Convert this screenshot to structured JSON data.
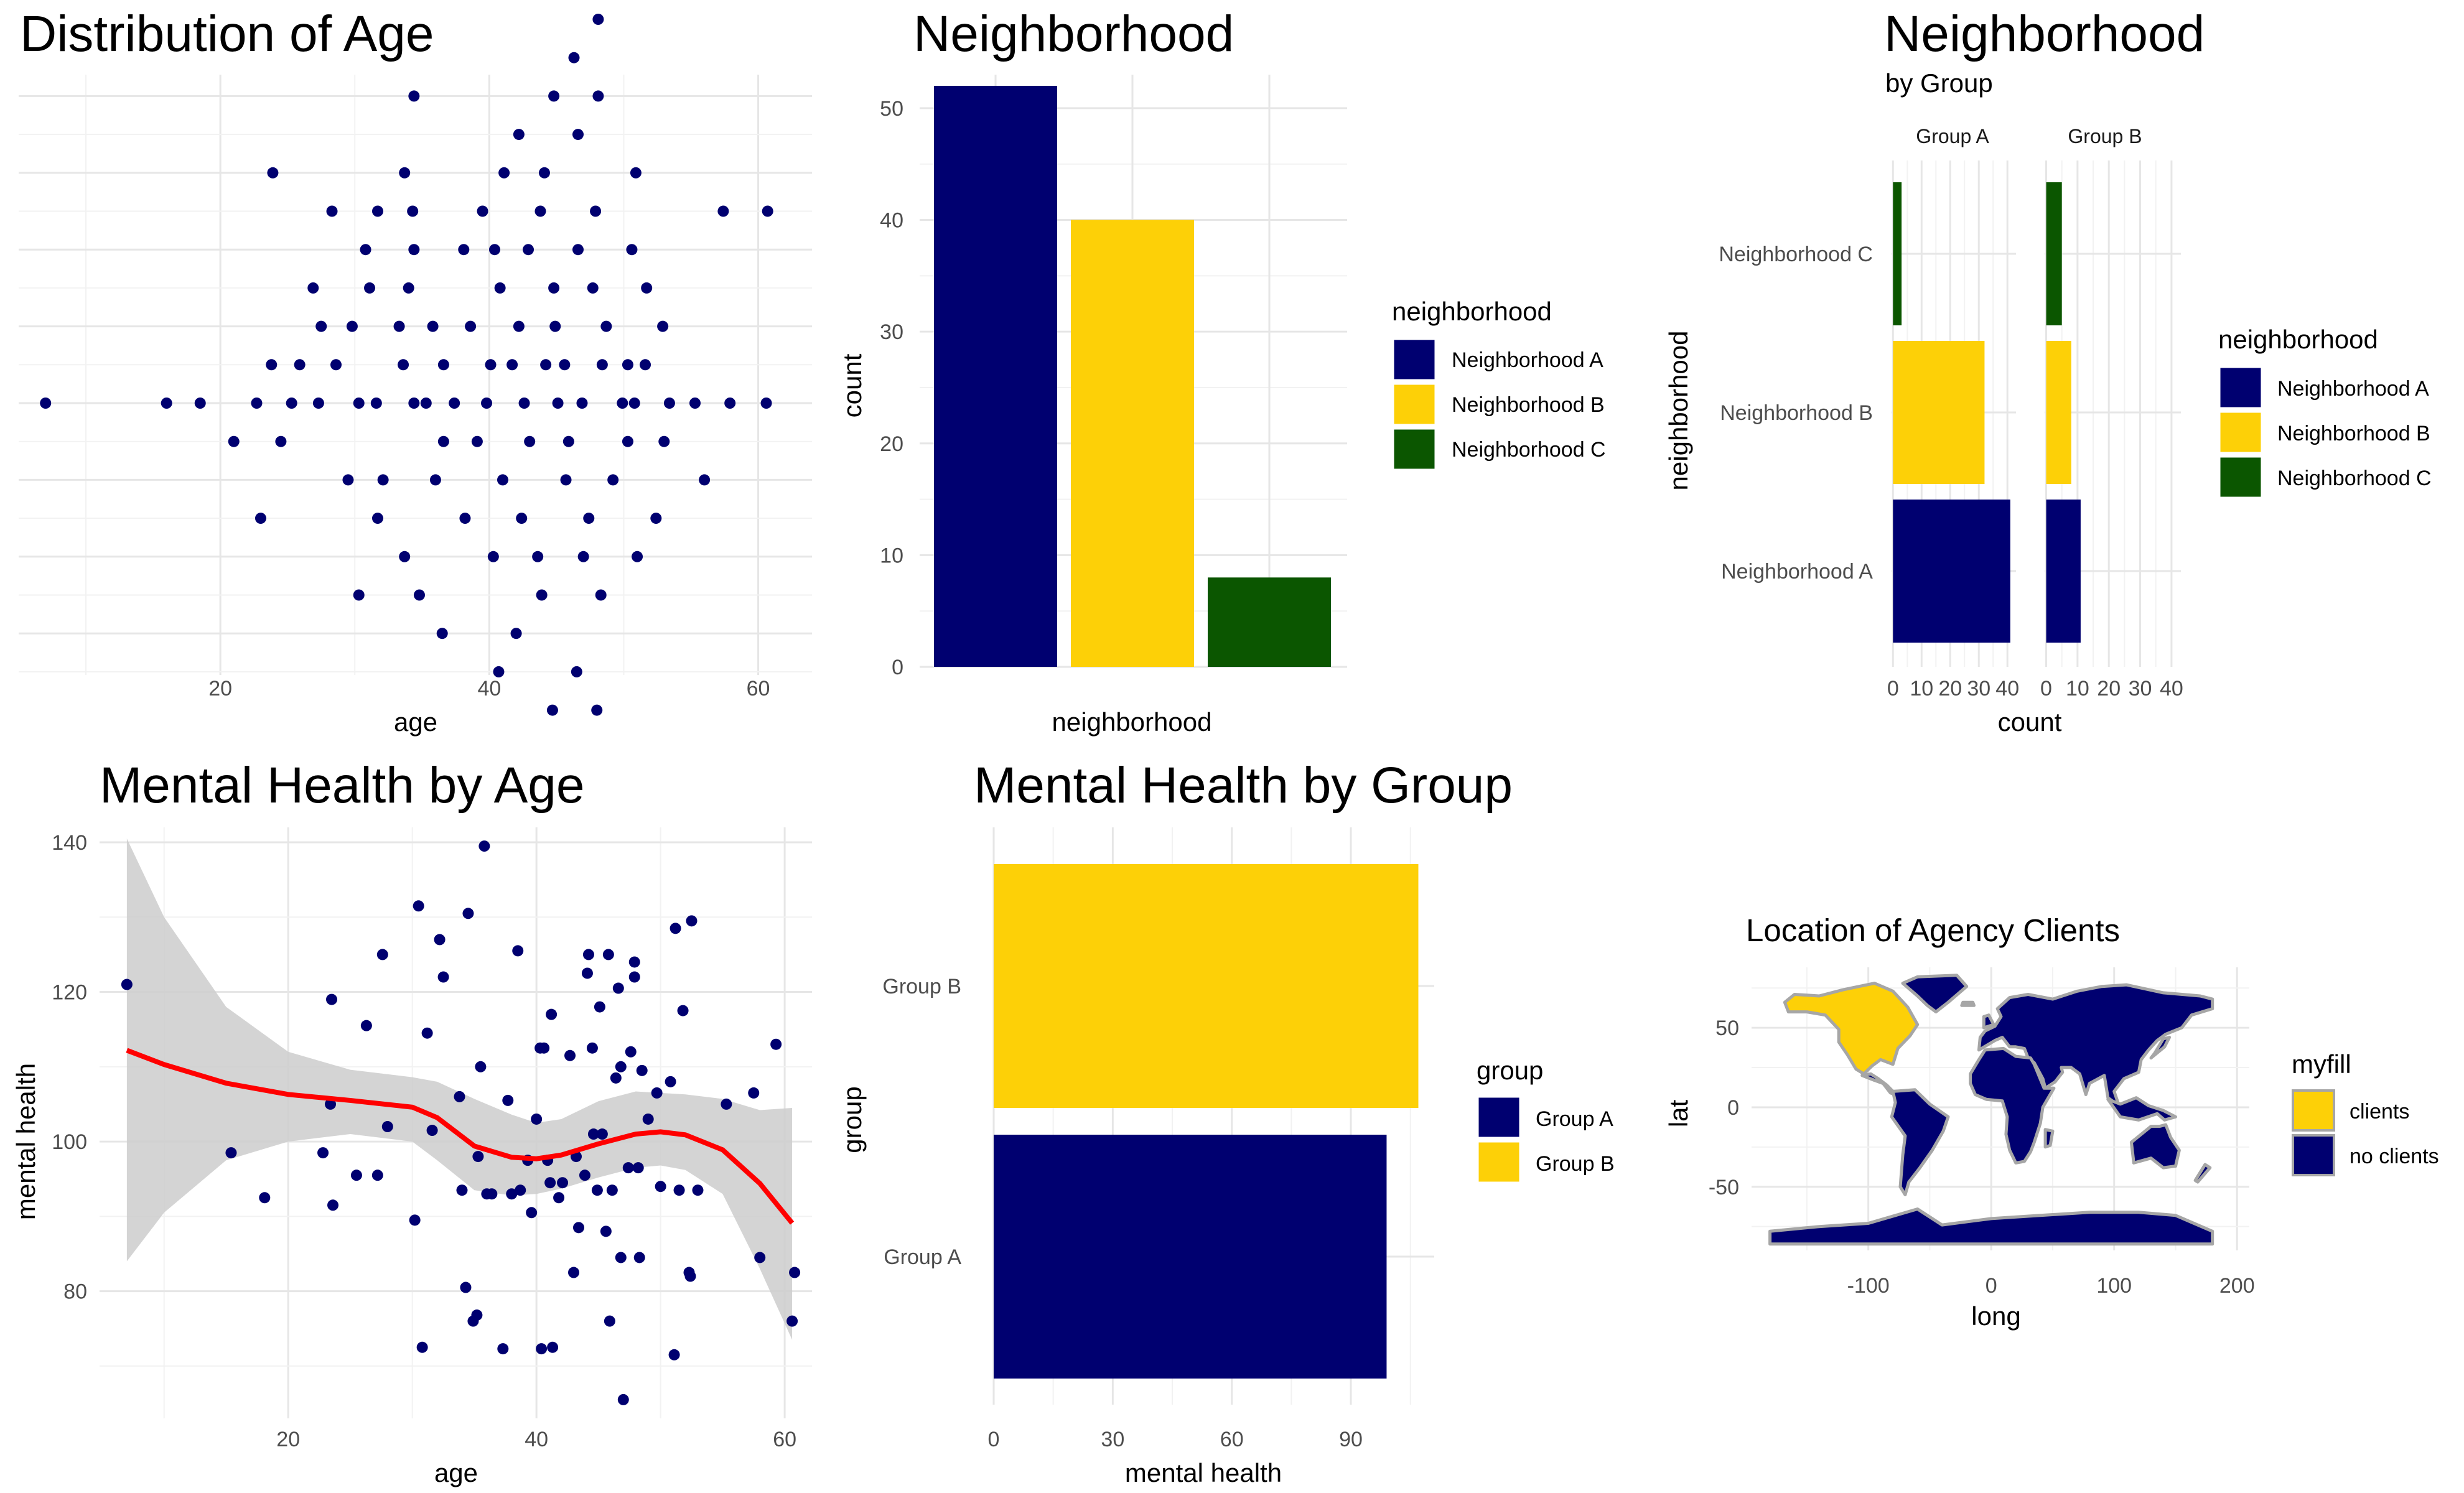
{
  "colors": {
    "navy": "#000070",
    "gold": "#FDD007",
    "green": "#0B5600",
    "red": "#FF0000",
    "band": "#CCCCCC",
    "land": "#A6A6A6"
  },
  "chart_data": [
    {
      "type": "scatter",
      "title": "Distribution of Age",
      "xlabel": "age",
      "ylabel": "",
      "xlim": [
        5,
        64
      ],
      "xticks": [
        "20",
        "40",
        "60"
      ],
      "grid": true,
      "note": "dotplot of ages; y axis has no labels",
      "points": [
        [
          7,
          0
        ],
        [
          16,
          0
        ],
        [
          18.5,
          0
        ],
        [
          22.7,
          0
        ],
        [
          25.3,
          0
        ],
        [
          27.3,
          0
        ],
        [
          30.3,
          0
        ],
        [
          31.6,
          0
        ],
        [
          34.4,
          0
        ],
        [
          35.3,
          0
        ],
        [
          37.4,
          0
        ],
        [
          39.8,
          0
        ],
        [
          42.6,
          0
        ],
        [
          45.1,
          0
        ],
        [
          46.9,
          0
        ],
        [
          49.9,
          0
        ],
        [
          50.8,
          0
        ],
        [
          53.4,
          0
        ],
        [
          55.3,
          0
        ],
        [
          57.9,
          0
        ],
        [
          60.6,
          0
        ],
        [
          23.8,
          1
        ],
        [
          25.9,
          1
        ],
        [
          28.6,
          1
        ],
        [
          33.6,
          1
        ],
        [
          36.6,
          1
        ],
        [
          40.1,
          1
        ],
        [
          41.7,
          1
        ],
        [
          44.2,
          1
        ],
        [
          45.6,
          1
        ],
        [
          48.4,
          1
        ],
        [
          50.3,
          1
        ],
        [
          51.6,
          1
        ],
        [
          27.5,
          2
        ],
        [
          29.8,
          2
        ],
        [
          33.3,
          2
        ],
        [
          35.8,
          2
        ],
        [
          38.6,
          2
        ],
        [
          42.2,
          2
        ],
        [
          44.9,
          2
        ],
        [
          48.7,
          2
        ],
        [
          52.9,
          2
        ],
        [
          26.9,
          3
        ],
        [
          31.1,
          3
        ],
        [
          34.0,
          3
        ],
        [
          40.8,
          3
        ],
        [
          44.8,
          3
        ],
        [
          47.7,
          3
        ],
        [
          51.7,
          3
        ],
        [
          30.8,
          4
        ],
        [
          34.4,
          4
        ],
        [
          38.1,
          4
        ],
        [
          40.4,
          4
        ],
        [
          42.9,
          4
        ],
        [
          46.6,
          4
        ],
        [
          50.6,
          4
        ],
        [
          28.3,
          5
        ],
        [
          31.7,
          5
        ],
        [
          34.3,
          5
        ],
        [
          39.5,
          5
        ],
        [
          43.8,
          5
        ],
        [
          47.9,
          5
        ],
        [
          57.4,
          5
        ],
        [
          60.7,
          5
        ],
        [
          23.9,
          6
        ],
        [
          33.7,
          6
        ],
        [
          41.1,
          6
        ],
        [
          44.1,
          6
        ],
        [
          50.9,
          6
        ],
        [
          42.2,
          7
        ],
        [
          46.6,
          7
        ],
        [
          34.4,
          8
        ],
        [
          44.8,
          8
        ],
        [
          48.1,
          8
        ],
        [
          46.3,
          9
        ],
        [
          48.1,
          10
        ],
        [
          21.0,
          -1
        ],
        [
          24.5,
          -1
        ],
        [
          36.6,
          -1
        ],
        [
          39.1,
          -1
        ],
        [
          43.0,
          -1
        ],
        [
          45.9,
          -1
        ],
        [
          50.3,
          -1
        ],
        [
          53.0,
          -1
        ],
        [
          29.5,
          -2
        ],
        [
          32.1,
          -2
        ],
        [
          36.0,
          -2
        ],
        [
          41.0,
          -2
        ],
        [
          45.7,
          -2
        ],
        [
          49.2,
          -2
        ],
        [
          56.0,
          -2
        ],
        [
          23.0,
          -3
        ],
        [
          31.7,
          -3
        ],
        [
          38.2,
          -3
        ],
        [
          42.4,
          -3
        ],
        [
          47.4,
          -3
        ],
        [
          52.4,
          -3
        ],
        [
          33.7,
          -4
        ],
        [
          40.3,
          -4
        ],
        [
          43.6,
          -4
        ],
        [
          47.0,
          -4
        ],
        [
          51.0,
          -4
        ],
        [
          30.3,
          -5
        ],
        [
          34.8,
          -5
        ],
        [
          43.9,
          -5
        ],
        [
          48.3,
          -5
        ],
        [
          36.5,
          -6
        ],
        [
          42.0,
          -6
        ],
        [
          40.7,
          -7
        ],
        [
          46.5,
          -7
        ],
        [
          44.7,
          -8
        ],
        [
          48.0,
          -8
        ]
      ]
    },
    {
      "type": "bar",
      "title": "Neighborhood",
      "xlabel": "neighborhood",
      "ylabel": "count",
      "ylim": [
        0,
        53
      ],
      "yticks": [
        0,
        10,
        20,
        30,
        40,
        50
      ],
      "categories": [
        "Neighborhood A",
        "Neighborhood B",
        "Neighborhood C"
      ],
      "values": [
        52,
        40,
        8
      ],
      "legend": {
        "title": "neighborhood",
        "position": "right",
        "items": [
          "Neighborhood A",
          "Neighborhood B",
          "Neighborhood C"
        ]
      }
    },
    {
      "type": "bar",
      "orientation": "horizontal",
      "title": "Neighborhood",
      "subtitle": "by Group",
      "xlabel": "count",
      "ylabel": "neighborhood",
      "facets": [
        "Group A",
        "Group B"
      ],
      "xlim": [
        -0.5,
        43
      ],
      "xticks": [
        0,
        10,
        20,
        30,
        40
      ],
      "categories": [
        "Neighborhood A",
        "Neighborhood B",
        "Neighborhood C"
      ],
      "series": [
        {
          "facet": "Group A",
          "values": [
            41,
            32,
            3
          ]
        },
        {
          "facet": "Group B",
          "values": [
            11,
            8,
            5
          ]
        }
      ],
      "legend": {
        "title": "neighborhood",
        "position": "right",
        "items": [
          "Neighborhood A",
          "Neighborhood B",
          "Neighborhood C"
        ]
      }
    },
    {
      "type": "scatter",
      "title": "Mental Health by Age",
      "xlabel": "age",
      "ylabel": "mental health",
      "xlim": [
        4.8,
        62.2
      ],
      "ylim": [
        63,
        142
      ],
      "xticks": [
        20,
        40,
        60
      ],
      "yticks": [
        80,
        100,
        120,
        140
      ],
      "smooth": {
        "x": [
          7,
          10,
          15,
          20,
          25,
          30,
          32,
          35,
          38,
          40,
          42,
          45,
          48,
          50,
          52,
          55,
          58,
          60.6
        ],
        "y": [
          112.2,
          110.3,
          107.8,
          106.3,
          105.5,
          104.6,
          103.2,
          99.4,
          97.9,
          97.7,
          98.2,
          99.7,
          101.0,
          101.3,
          100.9,
          98.9,
          94.4,
          89.1
        ],
        "lower": [
          84,
          90.5,
          97.5,
          100,
          101,
          100,
          97.5,
          93.5,
          92.8,
          93,
          93.7,
          95.2,
          96.5,
          96.8,
          96.2,
          93,
          83,
          73.5
        ],
        "upper": [
          140.5,
          130,
          118,
          112,
          109.6,
          108.6,
          108,
          105.7,
          103.6,
          102.5,
          103,
          105.4,
          106.7,
          106.5,
          106.3,
          105.7,
          104.2,
          104.5
        ]
      },
      "points": [
        [
          7,
          121
        ],
        [
          15.4,
          98.5
        ],
        [
          18.1,
          92.5
        ],
        [
          22.8,
          98.5
        ],
        [
          23.4,
          105
        ],
        [
          23.5,
          119
        ],
        [
          23.6,
          91.5
        ],
        [
          25.5,
          95.5
        ],
        [
          26.3,
          115.5
        ],
        [
          27.2,
          95.5
        ],
        [
          27.6,
          125
        ],
        [
          28,
          102
        ],
        [
          30.2,
          89.5
        ],
        [
          30.5,
          131.5
        ],
        [
          30.8,
          72.5
        ],
        [
          31.2,
          114.5
        ],
        [
          31.6,
          101.5
        ],
        [
          32.2,
          127
        ],
        [
          32.5,
          122
        ],
        [
          33.8,
          106
        ],
        [
          34,
          93.5
        ],
        [
          34.3,
          80.5
        ],
        [
          34.5,
          130.5
        ],
        [
          34.9,
          76
        ],
        [
          35.2,
          76.8
        ],
        [
          35.3,
          98
        ],
        [
          35.5,
          110
        ],
        [
          35.8,
          139.5
        ],
        [
          36,
          93
        ],
        [
          36.4,
          93
        ],
        [
          37.3,
          72.3
        ],
        [
          37.7,
          105.5
        ],
        [
          38,
          93
        ],
        [
          38.5,
          125.5
        ],
        [
          38.7,
          93.5
        ],
        [
          39.3,
          97.5
        ],
        [
          39.6,
          90.5
        ],
        [
          40,
          103
        ],
        [
          40.3,
          112.5
        ],
        [
          40.4,
          72.3
        ],
        [
          40.6,
          112.5
        ],
        [
          40.9,
          97.5
        ],
        [
          41.1,
          94.5
        ],
        [
          41.2,
          117
        ],
        [
          41.3,
          72.5
        ],
        [
          41.8,
          92.5
        ],
        [
          42.1,
          94.5
        ],
        [
          42.7,
          111.5
        ],
        [
          43,
          82.5
        ],
        [
          43.2,
          98
        ],
        [
          43.4,
          88.5
        ],
        [
          43.9,
          95.5
        ],
        [
          44.1,
          122.5
        ],
        [
          44.2,
          125
        ],
        [
          44.5,
          112.5
        ],
        [
          44.6,
          101
        ],
        [
          44.9,
          93.5
        ],
        [
          45.1,
          118
        ],
        [
          45.3,
          101
        ],
        [
          45.6,
          88
        ],
        [
          45.8,
          125
        ],
        [
          45.9,
          76
        ],
        [
          46.1,
          93.5
        ],
        [
          46.4,
          108.5
        ],
        [
          46.6,
          120.5
        ],
        [
          46.8,
          84.5
        ],
        [
          46.8,
          110
        ],
        [
          47,
          65.5
        ],
        [
          47.4,
          96.5
        ],
        [
          47.6,
          112
        ],
        [
          47.9,
          122
        ],
        [
          47.9,
          124
        ],
        [
          48.2,
          96.5
        ],
        [
          48.3,
          84.5
        ],
        [
          48.5,
          109.5
        ],
        [
          49,
          103
        ],
        [
          49.7,
          106.5
        ],
        [
          50,
          94
        ],
        [
          50.8,
          108
        ],
        [
          51.1,
          71.5
        ],
        [
          51.2,
          128.5
        ],
        [
          51.5,
          93.5
        ],
        [
          51.8,
          117.5
        ],
        [
          52.3,
          82.5
        ],
        [
          52.4,
          82
        ],
        [
          52.5,
          129.5
        ],
        [
          53,
          93.5
        ],
        [
          55.3,
          105
        ],
        [
          57.5,
          106.5
        ],
        [
          58,
          84.5
        ],
        [
          59.3,
          113
        ],
        [
          60.6,
          76
        ],
        [
          60.8,
          82.5
        ]
      ]
    },
    {
      "type": "bar",
      "orientation": "horizontal",
      "title": "Mental Health by Group",
      "xlabel": "mental health",
      "ylabel": "group",
      "xlim": [
        0,
        111
      ],
      "xticks": [
        0,
        30,
        60,
        90
      ],
      "categories": [
        "Group A",
        "Group B"
      ],
      "values": [
        99,
        107
      ],
      "legend": {
        "title": "group",
        "position": "right",
        "items": [
          "Group A",
          "Group B"
        ]
      }
    },
    {
      "type": "map",
      "title": "Location of Agency Clients",
      "xlabel": "long",
      "ylabel": "lat",
      "xlim": [
        -195,
        210
      ],
      "ylim": [
        -90,
        88
      ],
      "xticks": [
        -100,
        0,
        100,
        200
      ],
      "yticks": [
        -50,
        0,
        50
      ],
      "legend": {
        "title": "myfill",
        "position": "right",
        "items": [
          "clients",
          "no clients"
        ]
      }
    }
  ]
}
